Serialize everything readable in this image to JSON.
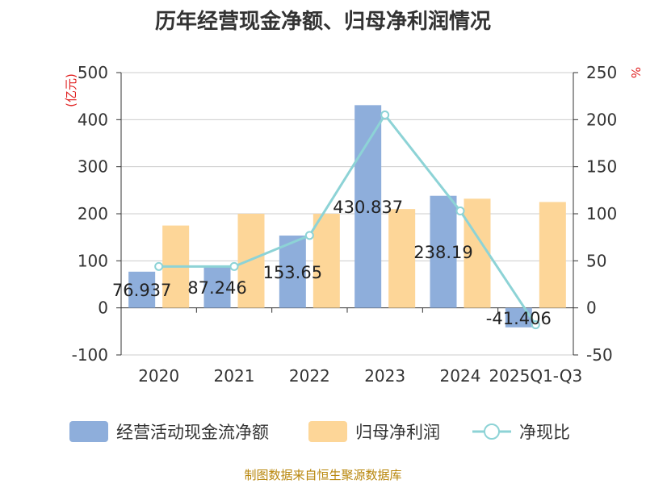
{
  "chart_data": {
    "type": "bar",
    "title": "历年经营现金净额、归母净利润情况",
    "categories": [
      "2020",
      "2021",
      "2022",
      "2023",
      "2024",
      "2025Q1-Q3"
    ],
    "series": [
      {
        "name": "经营活动现金流净额",
        "kind": "bar",
        "axis": "left",
        "color": "#8eaedb",
        "values": [
          76.937,
          87.246,
          153.65,
          430.837,
          238.19,
          -41.406
        ],
        "labels": [
          "76.937",
          "87.246",
          "153.65",
          "430.837",
          "238.19",
          "-41.406"
        ]
      },
      {
        "name": "归母净利润",
        "kind": "bar",
        "axis": "left",
        "color": "#fdd698",
        "values": [
          175,
          200,
          200,
          210,
          232,
          225
        ]
      },
      {
        "name": "净现比",
        "kind": "line",
        "axis": "right",
        "color": "#8dd3d6",
        "values": [
          44,
          44,
          77,
          205,
          103,
          -18
        ]
      }
    ],
    "y_left": {
      "unit": "(亿元)",
      "min": -100,
      "max": 500,
      "ticks": [
        -100,
        0,
        100,
        200,
        300,
        400,
        500
      ]
    },
    "y_right": {
      "unit": "%",
      "min": -50,
      "max": 250,
      "ticks": [
        -50,
        0,
        50,
        100,
        150,
        200,
        250
      ]
    },
    "grid": true,
    "legend_position": "bottom"
  },
  "source": "制图数据来自恒生聚源数据库"
}
